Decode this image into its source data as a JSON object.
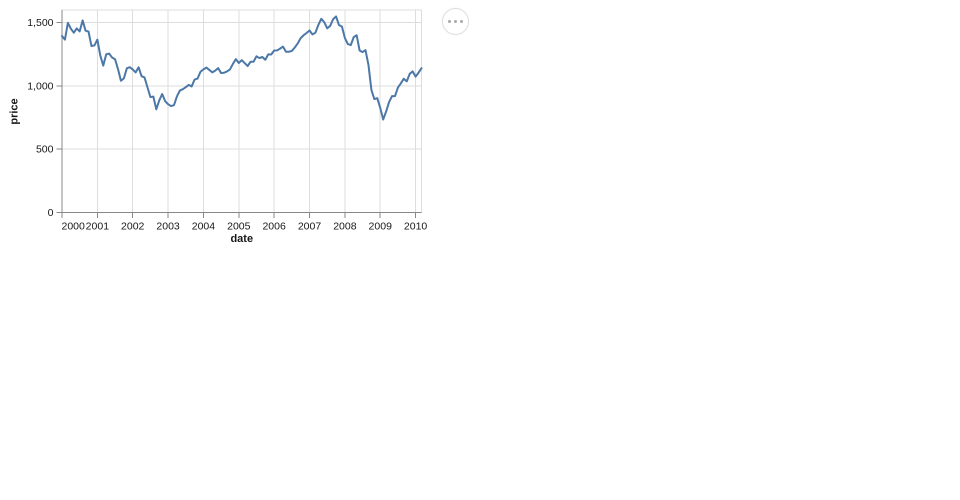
{
  "chart": {
    "actions_icon": "ellipsis-icon"
  },
  "chart_data": {
    "type": "line",
    "title": "",
    "xlabel": "date",
    "ylabel": "price",
    "x_tick_values": [
      2000,
      2001,
      2002,
      2003,
      2004,
      2005,
      2006,
      2007,
      2008,
      2009,
      2010
    ],
    "x_tick_labels": [
      "2000",
      "2001",
      "2002",
      "2003",
      "2004",
      "2005",
      "2006",
      "2007",
      "2008",
      "2009",
      "2010"
    ],
    "y_tick_values": [
      0,
      500,
      1000,
      1500
    ],
    "y_tick_labels": [
      "0",
      "500",
      "1,000",
      "1,500"
    ],
    "xlim": [
      2000.0,
      2010.167
    ],
    "ylim": [
      0,
      1600
    ],
    "grid": true,
    "legend": false,
    "line_color": "#4c78a8",
    "grid_color": "#dddddd",
    "axis_color": "#888888",
    "points": [
      [
        "2000-01",
        1394.46
      ],
      [
        "2000-02",
        1366.42
      ],
      [
        "2000-03",
        1498.58
      ],
      [
        "2000-04",
        1452.43
      ],
      [
        "2000-05",
        1420.6
      ],
      [
        "2000-06",
        1454.6
      ],
      [
        "2000-07",
        1430.83
      ],
      [
        "2000-08",
        1517.68
      ],
      [
        "2000-09",
        1436.51
      ],
      [
        "2000-10",
        1429.4
      ],
      [
        "2000-11",
        1314.95
      ],
      [
        "2000-12",
        1320.28
      ],
      [
        "2001-01",
        1366.01
      ],
      [
        "2001-02",
        1239.94
      ],
      [
        "2001-03",
        1160.33
      ],
      [
        "2001-04",
        1249.46
      ],
      [
        "2001-05",
        1255.82
      ],
      [
        "2001-06",
        1224.38
      ],
      [
        "2001-07",
        1211.23
      ],
      [
        "2001-08",
        1133.58
      ],
      [
        "2001-09",
        1040.94
      ],
      [
        "2001-10",
        1059.78
      ],
      [
        "2001-11",
        1139.45
      ],
      [
        "2001-12",
        1148.08
      ],
      [
        "2002-01",
        1130.2
      ],
      [
        "2002-02",
        1106.73
      ],
      [
        "2002-03",
        1147.39
      ],
      [
        "2002-04",
        1076.92
      ],
      [
        "2002-05",
        1067.14
      ],
      [
        "2002-06",
        989.82
      ],
      [
        "2002-07",
        911.62
      ],
      [
        "2002-08",
        916.07
      ],
      [
        "2002-09",
        815.28
      ],
      [
        "2002-10",
        885.76
      ],
      [
        "2002-11",
        936.31
      ],
      [
        "2002-12",
        879.82
      ],
      [
        "2003-01",
        855.7
      ],
      [
        "2003-02",
        841.15
      ],
      [
        "2003-03",
        848.18
      ],
      [
        "2003-04",
        916.92
      ],
      [
        "2003-05",
        963.59
      ],
      [
        "2003-06",
        974.5
      ],
      [
        "2003-07",
        990.31
      ],
      [
        "2003-08",
        1008.01
      ],
      [
        "2003-09",
        995.97
      ],
      [
        "2003-10",
        1050.71
      ],
      [
        "2003-11",
        1058.2
      ],
      [
        "2003-12",
        1111.92
      ],
      [
        "2004-01",
        1131.13
      ],
      [
        "2004-02",
        1144.94
      ],
      [
        "2004-03",
        1126.21
      ],
      [
        "2004-04",
        1107.3
      ],
      [
        "2004-05",
        1120.68
      ],
      [
        "2004-06",
        1140.84
      ],
      [
        "2004-07",
        1101.72
      ],
      [
        "2004-08",
        1104.24
      ],
      [
        "2004-09",
        1114.58
      ],
      [
        "2004-10",
        1130.2
      ],
      [
        "2004-11",
        1173.82
      ],
      [
        "2004-12",
        1211.92
      ],
      [
        "2005-01",
        1181.27
      ],
      [
        "2005-02",
        1203.6
      ],
      [
        "2005-03",
        1180.59
      ],
      [
        "2005-04",
        1156.85
      ],
      [
        "2005-05",
        1191.5
      ],
      [
        "2005-06",
        1191.33
      ],
      [
        "2005-07",
        1234.18
      ],
      [
        "2005-08",
        1220.33
      ],
      [
        "2005-09",
        1228.81
      ],
      [
        "2005-10",
        1207.01
      ],
      [
        "2005-11",
        1249.48
      ],
      [
        "2005-12",
        1248.29
      ],
      [
        "2006-01",
        1280.08
      ],
      [
        "2006-02",
        1280.66
      ],
      [
        "2006-03",
        1294.87
      ],
      [
        "2006-04",
        1310.61
      ],
      [
        "2006-05",
        1270.09
      ],
      [
        "2006-06",
        1270.2
      ],
      [
        "2006-07",
        1276.66
      ],
      [
        "2006-08",
        1303.82
      ],
      [
        "2006-09",
        1335.85
      ],
      [
        "2006-10",
        1377.94
      ],
      [
        "2006-11",
        1400.63
      ],
      [
        "2006-12",
        1418.3
      ],
      [
        "2007-01",
        1438.24
      ],
      [
        "2007-02",
        1406.82
      ],
      [
        "2007-03",
        1420.86
      ],
      [
        "2007-04",
        1482.37
      ],
      [
        "2007-05",
        1530.62
      ],
      [
        "2007-06",
        1503.35
      ],
      [
        "2007-07",
        1455.27
      ],
      [
        "2007-08",
        1473.99
      ],
      [
        "2007-09",
        1526.75
      ],
      [
        "2007-10",
        1549.38
      ],
      [
        "2007-11",
        1481.14
      ],
      [
        "2007-12",
        1468.36
      ],
      [
        "2008-01",
        1378.55
      ],
      [
        "2008-02",
        1330.63
      ],
      [
        "2008-03",
        1322.7
      ],
      [
        "2008-04",
        1385.59
      ],
      [
        "2008-05",
        1400.38
      ],
      [
        "2008-06",
        1280.0
      ],
      [
        "2008-07",
        1267.38
      ],
      [
        "2008-08",
        1282.83
      ],
      [
        "2008-09",
        1166.36
      ],
      [
        "2008-10",
        968.75
      ],
      [
        "2008-11",
        896.24
      ],
      [
        "2008-12",
        903.25
      ],
      [
        "2009-01",
        825.88
      ],
      [
        "2009-02",
        735.09
      ],
      [
        "2009-03",
        797.87
      ],
      [
        "2009-04",
        872.81
      ],
      [
        "2009-05",
        919.14
      ],
      [
        "2009-06",
        919.32
      ],
      [
        "2009-07",
        987.48
      ],
      [
        "2009-08",
        1020.62
      ],
      [
        "2009-09",
        1057.08
      ],
      [
        "2009-10",
        1036.19
      ],
      [
        "2009-11",
        1095.63
      ],
      [
        "2009-12",
        1115.1
      ],
      [
        "2010-01",
        1073.87
      ],
      [
        "2010-02",
        1104.49
      ],
      [
        "2010-03",
        1140.45
      ]
    ]
  }
}
